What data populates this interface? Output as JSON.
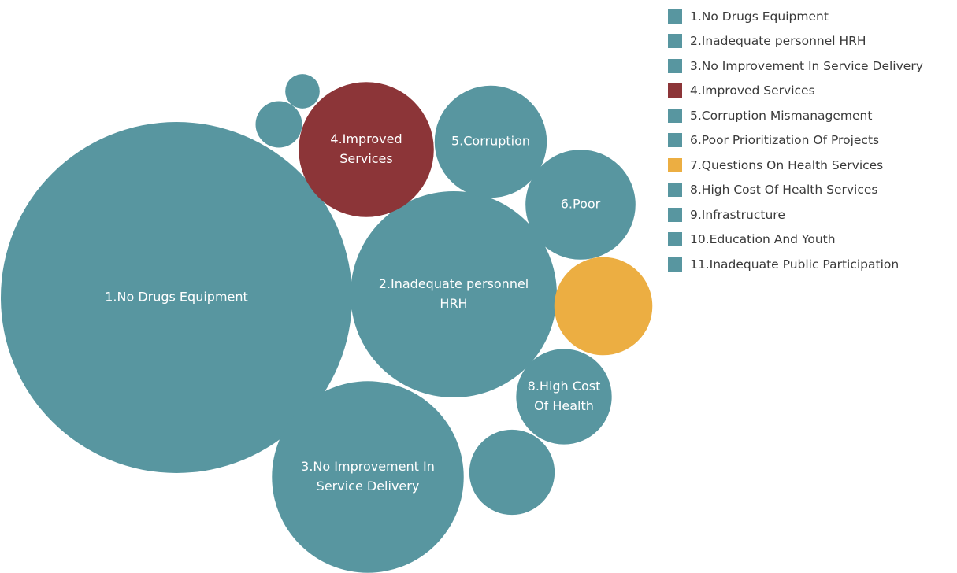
{
  "chart_data": {
    "type": "bubble",
    "title": "",
    "colors": {
      "default": "#5896A0",
      "highlight_red": "#8C3538",
      "highlight_orange": "#ECAE42"
    },
    "legend_position": "top-right",
    "bubbles": [
      {
        "category": "1.No Drugs Equipment",
        "label_lines": [
          "1.No Drugs Equipment"
        ],
        "color": "#5896A0",
        "relative_size": 1.0
      },
      {
        "category": "2.Inadequate personnel HRH",
        "label_lines": [
          "2.Inadequate personnel",
          "HRH"
        ],
        "color": "#5896A0",
        "relative_size": 0.345
      },
      {
        "category": "3.No Improvement In Service Delivery",
        "label_lines": [
          "3.No Improvement In",
          "Service Delivery"
        ],
        "color": "#5896A0",
        "relative_size": 0.298
      },
      {
        "category": "4.Improved Services",
        "label_lines": [
          "4.Improved",
          "Services"
        ],
        "color": "#8C3538",
        "relative_size": 0.148
      },
      {
        "category": "5.Corruption Mismanagement",
        "label_lines": [
          "5.Corruption"
        ],
        "color": "#5896A0",
        "relative_size": 0.102
      },
      {
        "category": "6.Poor Prioritization Of Projects",
        "label_lines": [
          "6.Poor"
        ],
        "color": "#5896A0",
        "relative_size": 0.098
      },
      {
        "category": "7.Questions On Health Services",
        "label_lines": [],
        "color": "#ECAE42",
        "relative_size": 0.078
      },
      {
        "category": "8.High Cost Of Health Services",
        "label_lines": [
          "8.High Cost",
          "Of Health"
        ],
        "color": "#5896A0",
        "relative_size": 0.074
      },
      {
        "category": "9.Infrastructure",
        "label_lines": [],
        "color": "#5896A0",
        "relative_size": 0.059
      },
      {
        "category": "10.Education And Youth",
        "label_lines": [],
        "color": "#5896A0",
        "relative_size": 0.0175
      },
      {
        "category": "11.Inadequate Public Participation",
        "label_lines": [],
        "color": "#5896A0",
        "relative_size": 0.0096
      }
    ],
    "legend": [
      {
        "label": "1.No Drugs Equipment",
        "color": "#5896A0"
      },
      {
        "label": "2.Inadequate personnel HRH",
        "color": "#5896A0"
      },
      {
        "label": "3.No Improvement In Service Delivery",
        "color": "#5896A0"
      },
      {
        "label": "4.Improved Services",
        "color": "#8C3538"
      },
      {
        "label": "5.Corruption Mismanagement",
        "color": "#5896A0"
      },
      {
        "label": "6.Poor Prioritization Of Projects",
        "color": "#5896A0"
      },
      {
        "label": "7.Questions On Health Services",
        "color": "#ECAE42"
      },
      {
        "label": "8.High Cost Of Health Services",
        "color": "#5896A0"
      },
      {
        "label": "9.Infrastructure",
        "color": "#5896A0"
      },
      {
        "label": "10.Education And Youth",
        "color": "#5896A0"
      },
      {
        "label": "11.Inadequate Public Participation",
        "color": "#5896A0"
      }
    ]
  }
}
